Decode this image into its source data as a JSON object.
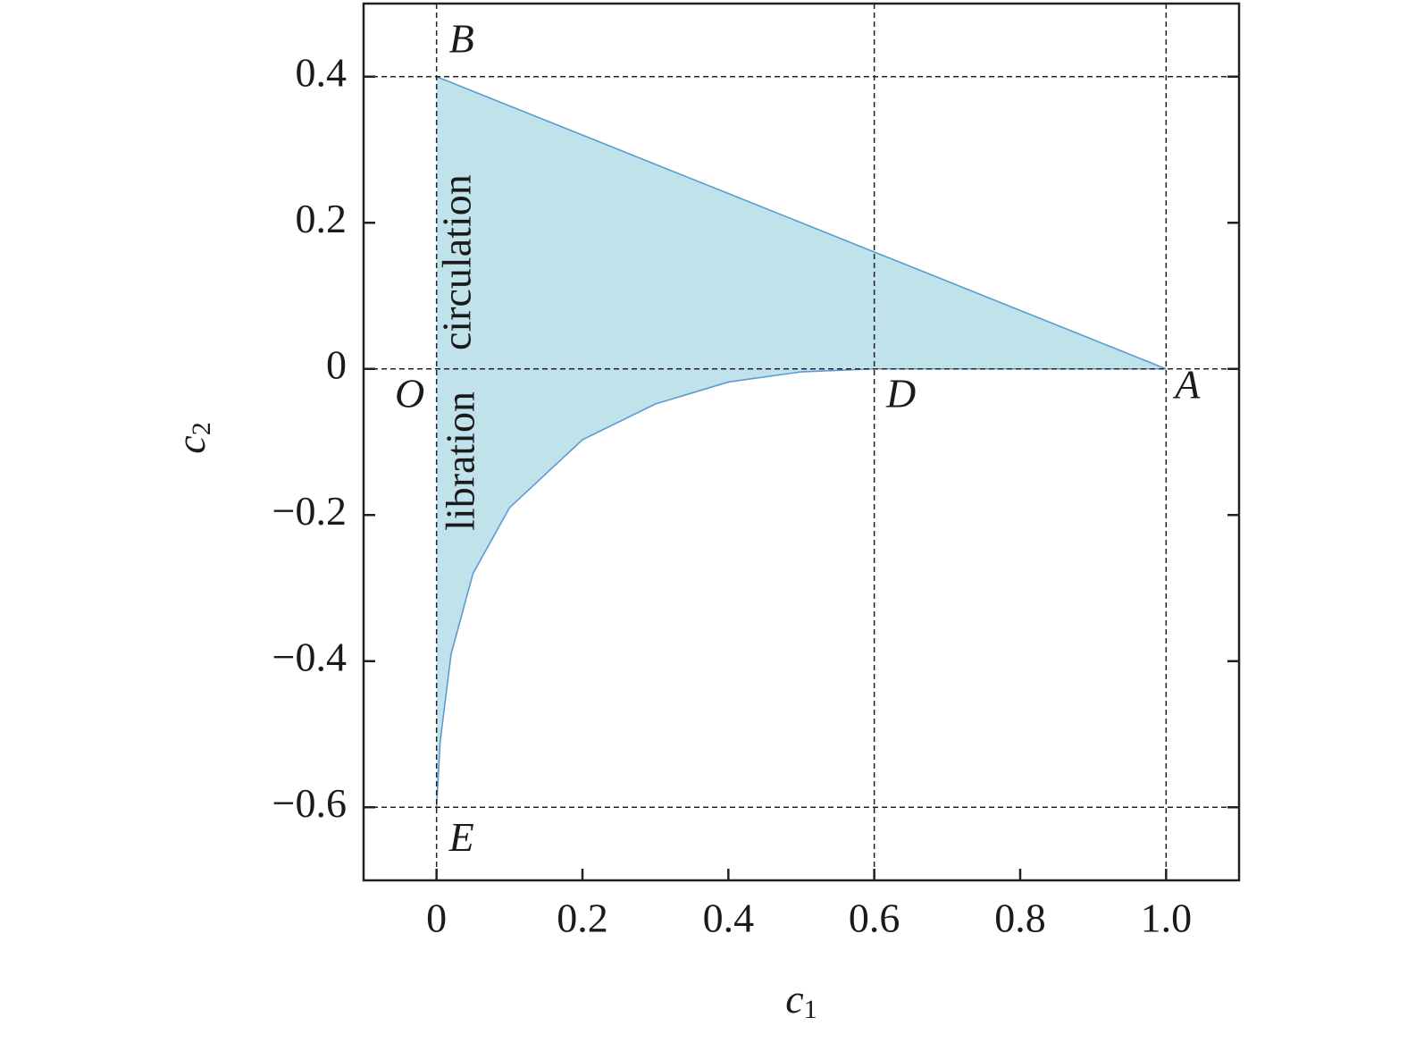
{
  "chart_data": {
    "type": "area",
    "xlabel": {
      "symbol": "c",
      "subscript": "1"
    },
    "ylabel": {
      "symbol": "c",
      "subscript": "2"
    },
    "xlim": [
      -0.1,
      1.1
    ],
    "ylim": [
      -0.7,
      0.5
    ],
    "xticks": [
      0,
      0.2,
      0.4,
      0.6,
      0.8,
      {
        "value": 1,
        "label": "1.0"
      }
    ],
    "yticks": [
      {
        "value": -0.6,
        "label": "−0.6"
      },
      {
        "value": -0.4,
        "label": "−0.4"
      },
      {
        "value": -0.2,
        "label": "−0.2"
      },
      0,
      0.2,
      0.4
    ],
    "ref_lines": {
      "x": [
        0,
        0.6,
        1
      ],
      "y": [
        -0.6,
        0,
        0.4
      ]
    },
    "x": [
      0,
      0.005,
      0.02,
      0.05,
      0.1,
      0.2,
      0.3,
      0.4,
      0.5,
      0.6,
      0.7,
      0.8,
      0.9,
      1
    ],
    "upper": [
      0.4,
      0.398,
      0.392,
      0.38,
      0.36,
      0.32,
      0.28,
      0.24,
      0.2,
      0.16,
      0.12,
      0.08,
      0.04,
      0
    ],
    "lower": [
      -0.6,
      -0.51,
      -0.39,
      -0.28,
      -0.19,
      -0.097,
      -0.048,
      -0.018,
      -0.004,
      0,
      0,
      0,
      0,
      0
    ],
    "fill_color": "#c0e2ea",
    "line_color": "#5b9bd5",
    "points": [
      {
        "label": "B",
        "x": 0,
        "y": 0.4
      },
      {
        "label": "O",
        "x": 0,
        "y": 0
      },
      {
        "label": "D",
        "x": 0.6,
        "y": 0
      },
      {
        "label": "A",
        "x": 1,
        "y": 0
      },
      {
        "label": "E",
        "x": 0,
        "y": -0.6
      }
    ],
    "region_labels": [
      "circulation",
      "libration"
    ]
  }
}
